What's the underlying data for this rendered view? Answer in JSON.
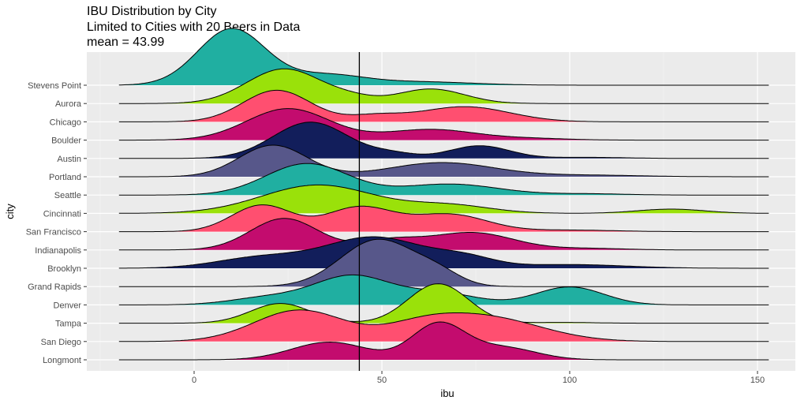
{
  "chart_data": {
    "type": "ridgeline",
    "title": "IBU Distribution by City",
    "subtitle": "Limited to Cities with 20 Beers in Data",
    "caption_line": "mean = 43.99",
    "xlabel": "ibu",
    "ylabel": "city",
    "xlim": [
      -25,
      155
    ],
    "x_ticks": [
      0,
      50,
      100,
      150
    ],
    "mean_line": 43.99,
    "grid": true,
    "colors": [
      "#20AFA1",
      "#9AE10A",
      "#FF4F70",
      "#C30C6E",
      "#121E5B",
      "#57578A"
    ],
    "series": [
      {
        "name": "Stevens Point",
        "color": "#20AFA1",
        "height": 1.8,
        "peaks": [
          [
            10,
            1.0,
            9
          ],
          [
            35,
            0.18,
            10
          ],
          [
            60,
            0.06,
            14
          ]
        ]
      },
      {
        "name": "Aurora",
        "color": "#9AE10A",
        "height": 1.1,
        "peaks": [
          [
            24,
            1.0,
            10
          ],
          [
            63,
            0.42,
            9
          ],
          [
            42,
            0.12,
            6
          ]
        ]
      },
      {
        "name": "Chicago",
        "color": "#FF4F70",
        "height": 1.0,
        "peaks": [
          [
            22,
            1.0,
            9
          ],
          [
            72,
            0.48,
            12
          ],
          [
            48,
            0.18,
            7
          ]
        ]
      },
      {
        "name": "Boulder",
        "color": "#C30C6E",
        "height": 1.0,
        "peaks": [
          [
            25,
            1.0,
            11
          ],
          [
            63,
            0.34,
            12
          ],
          [
            90,
            0.05,
            10
          ]
        ]
      },
      {
        "name": "Austin",
        "color": "#121E5B",
        "height": 1.15,
        "peaks": [
          [
            31,
            1.0,
            10
          ],
          [
            76,
            0.35,
            8
          ],
          [
            53,
            0.12,
            6
          ],
          [
            105,
            0.03,
            10
          ]
        ]
      },
      {
        "name": "Portland",
        "color": "#57578A",
        "height": 1.0,
        "peaks": [
          [
            21,
            1.0,
            9
          ],
          [
            66,
            0.45,
            14
          ],
          [
            105,
            0.05,
            14
          ]
        ]
      },
      {
        "name": "Seattle",
        "color": "#20AFA1",
        "height": 1.0,
        "peaks": [
          [
            30,
            1.0,
            11
          ],
          [
            68,
            0.35,
            13
          ],
          [
            105,
            0.04,
            10
          ]
        ]
      },
      {
        "name": "Cincinnati",
        "color": "#9AE10A",
        "height": 0.9,
        "peaks": [
          [
            33,
            1.0,
            15
          ],
          [
            68,
            0.28,
            11
          ],
          [
            127,
            0.15,
            9
          ]
        ]
      },
      {
        "name": "San Francisco",
        "color": "#FF4F70",
        "height": 0.85,
        "peaks": [
          [
            18,
            1.0,
            8
          ],
          [
            44,
            0.92,
            9
          ],
          [
            68,
            0.65,
            10
          ],
          [
            100,
            0.06,
            12
          ]
        ]
      },
      {
        "name": "Indianapolis",
        "color": "#C30C6E",
        "height": 1.0,
        "peaks": [
          [
            24,
            1.0,
            9
          ],
          [
            52,
            0.3,
            8
          ],
          [
            74,
            0.55,
            11
          ],
          [
            105,
            0.05,
            10
          ]
        ]
      },
      {
        "name": "Brooklyn",
        "color": "#121E5B",
        "height": 1.0,
        "peaks": [
          [
            18,
            0.35,
            12
          ],
          [
            48,
            1.0,
            13
          ],
          [
            72,
            0.3,
            8
          ],
          [
            100,
            0.12,
            15
          ]
        ]
      },
      {
        "name": "Grand Rapids",
        "color": "#57578A",
        "height": 1.5,
        "peaks": [
          [
            49,
            1.0,
            10
          ],
          [
            65,
            0.22,
            6
          ]
        ]
      },
      {
        "name": "Denver",
        "color": "#20AFA1",
        "height": 0.95,
        "peaks": [
          [
            20,
            0.25,
            10
          ],
          [
            42,
            0.95,
            10
          ],
          [
            65,
            0.4,
            10
          ],
          [
            100,
            0.6,
            9
          ]
        ]
      },
      {
        "name": "Tampa",
        "color": "#9AE10A",
        "height": 1.25,
        "peaks": [
          [
            23,
            0.5,
            8
          ],
          [
            65,
            1.0,
            8
          ],
          [
            98,
            0.02,
            8
          ]
        ]
      },
      {
        "name": "San Diego",
        "color": "#FF4F70",
        "height": 1.0,
        "peaks": [
          [
            28,
            1.0,
            12
          ],
          [
            77,
            0.78,
            15
          ],
          [
            60,
            0.35,
            10
          ]
        ]
      },
      {
        "name": "Longmont",
        "color": "#C30C6E",
        "height": 1.2,
        "peaks": [
          [
            36,
            0.5,
            10
          ],
          [
            65,
            1.0,
            7
          ],
          [
            82,
            0.35,
            9
          ]
        ]
      }
    ]
  }
}
